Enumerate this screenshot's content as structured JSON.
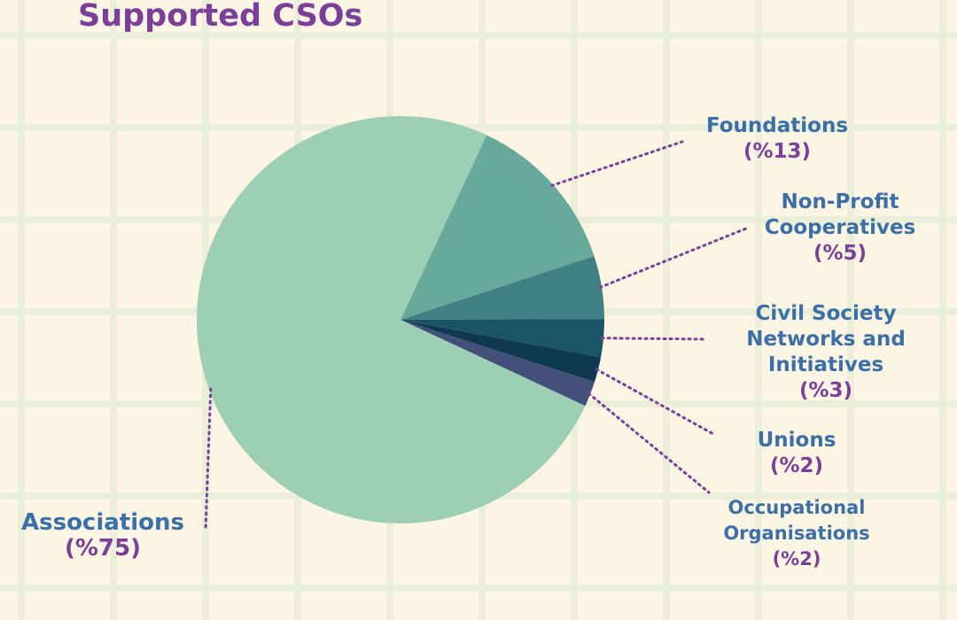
{
  "chart_data": {
    "type": "pie",
    "title": "Supported CSOs",
    "slices": [
      {
        "label": "Associations",
        "pct_label": "(%75)",
        "value": 75,
        "color": "#9ccfb3"
      },
      {
        "label": "Foundations",
        "pct_label": "(%13)",
        "value": 13,
        "color": "#67a99b"
      },
      {
        "label": "Non-Profit Cooperatives",
        "pct_label": "(%5)",
        "value": 5,
        "color": "#3f8085"
      },
      {
        "label": "Civil Society Networks and Initiatives",
        "pct_label": "(%3)",
        "value": 3,
        "color": "#1a5466"
      },
      {
        "label": "Unions",
        "pct_label": "(%2)",
        "value": 2,
        "color": "#0f3950"
      },
      {
        "label": "Occupational Organisations",
        "pct_label": "(%2)",
        "value": 2,
        "color": "#43507a"
      }
    ],
    "colors": {
      "background": "#fdf5e4",
      "grid": "#ebefd9",
      "title": "#7b3f98",
      "label_name": "#3a6fa8",
      "label_pct": "#7b3f98"
    }
  }
}
